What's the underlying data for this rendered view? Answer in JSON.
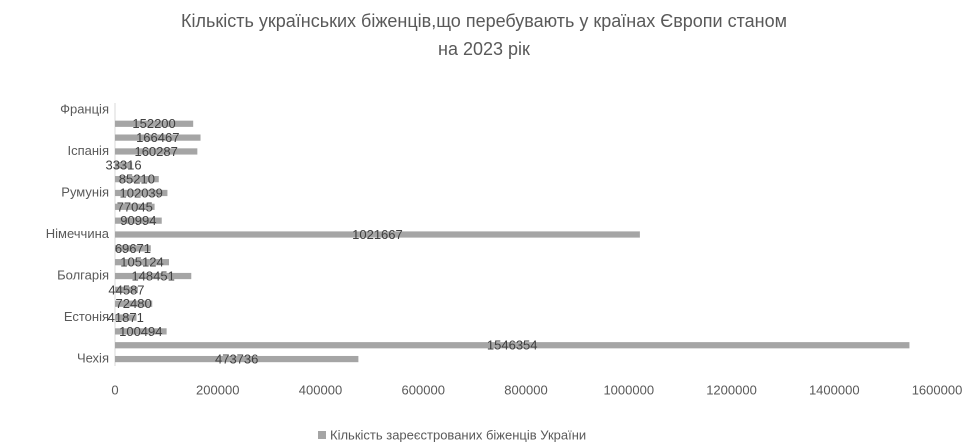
{
  "chart_data": {
    "type": "hbar",
    "title": [
      "Кількість українських біженців,що перебувають у країнах Європи станом",
      "на 2023 рік"
    ],
    "categories": [
      "Чехія",
      null,
      null,
      "Естонія",
      null,
      null,
      "Болгарія",
      null,
      null,
      "Німеччина",
      null,
      null,
      "Румунія",
      null,
      null,
      "Іспанія",
      null,
      null,
      "Франція"
    ],
    "series": [
      {
        "name": "Кількість зареєстрованих біженців України",
        "color": "#a5a5a5",
        "values": [
          473736,
          1546354,
          100494,
          41871,
          72480,
          44587,
          148451,
          105124,
          69671,
          1021667,
          90994,
          77045,
          102039,
          85210,
          33316,
          160287,
          166467,
          152200,
          null
        ]
      }
    ],
    "xlim": [
      0,
      1600000
    ],
    "xticks": [
      0,
      200000,
      400000,
      600000,
      800000,
      1000000,
      1200000,
      1400000,
      1600000
    ],
    "legend": "bottom"
  }
}
